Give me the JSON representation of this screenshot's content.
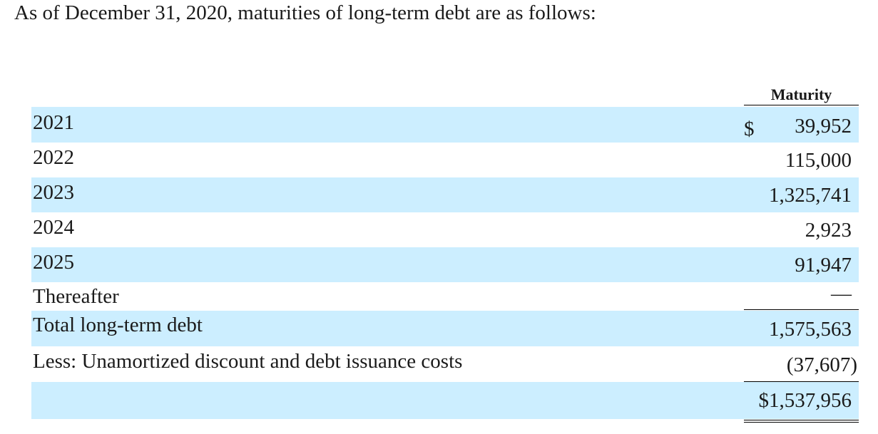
{
  "intro_text": "As of December 31, 2020, maturities of long-term debt are as follows:",
  "column_header": "Maturity",
  "rows": [
    {
      "label": "2021",
      "currency": "$",
      "amount": "39,952"
    },
    {
      "label": "2022",
      "amount": "115,000"
    },
    {
      "label": "2023",
      "amount": "1,325,741"
    },
    {
      "label": "2024",
      "amount": "2,923"
    },
    {
      "label": "2025",
      "amount": "91,947"
    },
    {
      "label": "Thereafter",
      "amount": "—"
    },
    {
      "label": "Total long-term debt",
      "amount": "1,575,563"
    },
    {
      "label": "Less: Unamortized discount and debt issuance costs",
      "amount": "(37,607)"
    },
    {
      "label": "",
      "amount": "$1,537,956"
    }
  ],
  "colors": {
    "shade": "#cceeff",
    "text": "#1a1a1a"
  }
}
